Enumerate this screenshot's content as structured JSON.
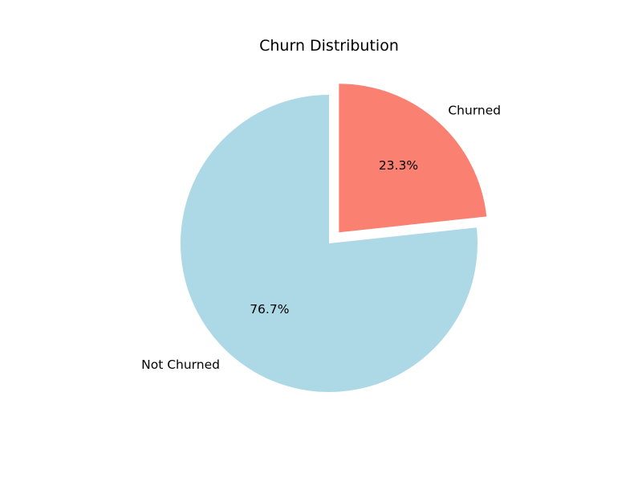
{
  "chart_data": {
    "type": "pie",
    "title": "Churn Distribution",
    "start_angle_deg": 90,
    "direction": "clockwise",
    "slices": [
      {
        "label": "Churned",
        "value": 23.3,
        "pct_label": "23.3%",
        "color": "#fa8072",
        "exploded": true
      },
      {
        "label": "Not Churned",
        "value": 76.7,
        "pct_label": "76.7%",
        "color": "#add8e6",
        "exploded": false
      }
    ],
    "legend": "none"
  }
}
